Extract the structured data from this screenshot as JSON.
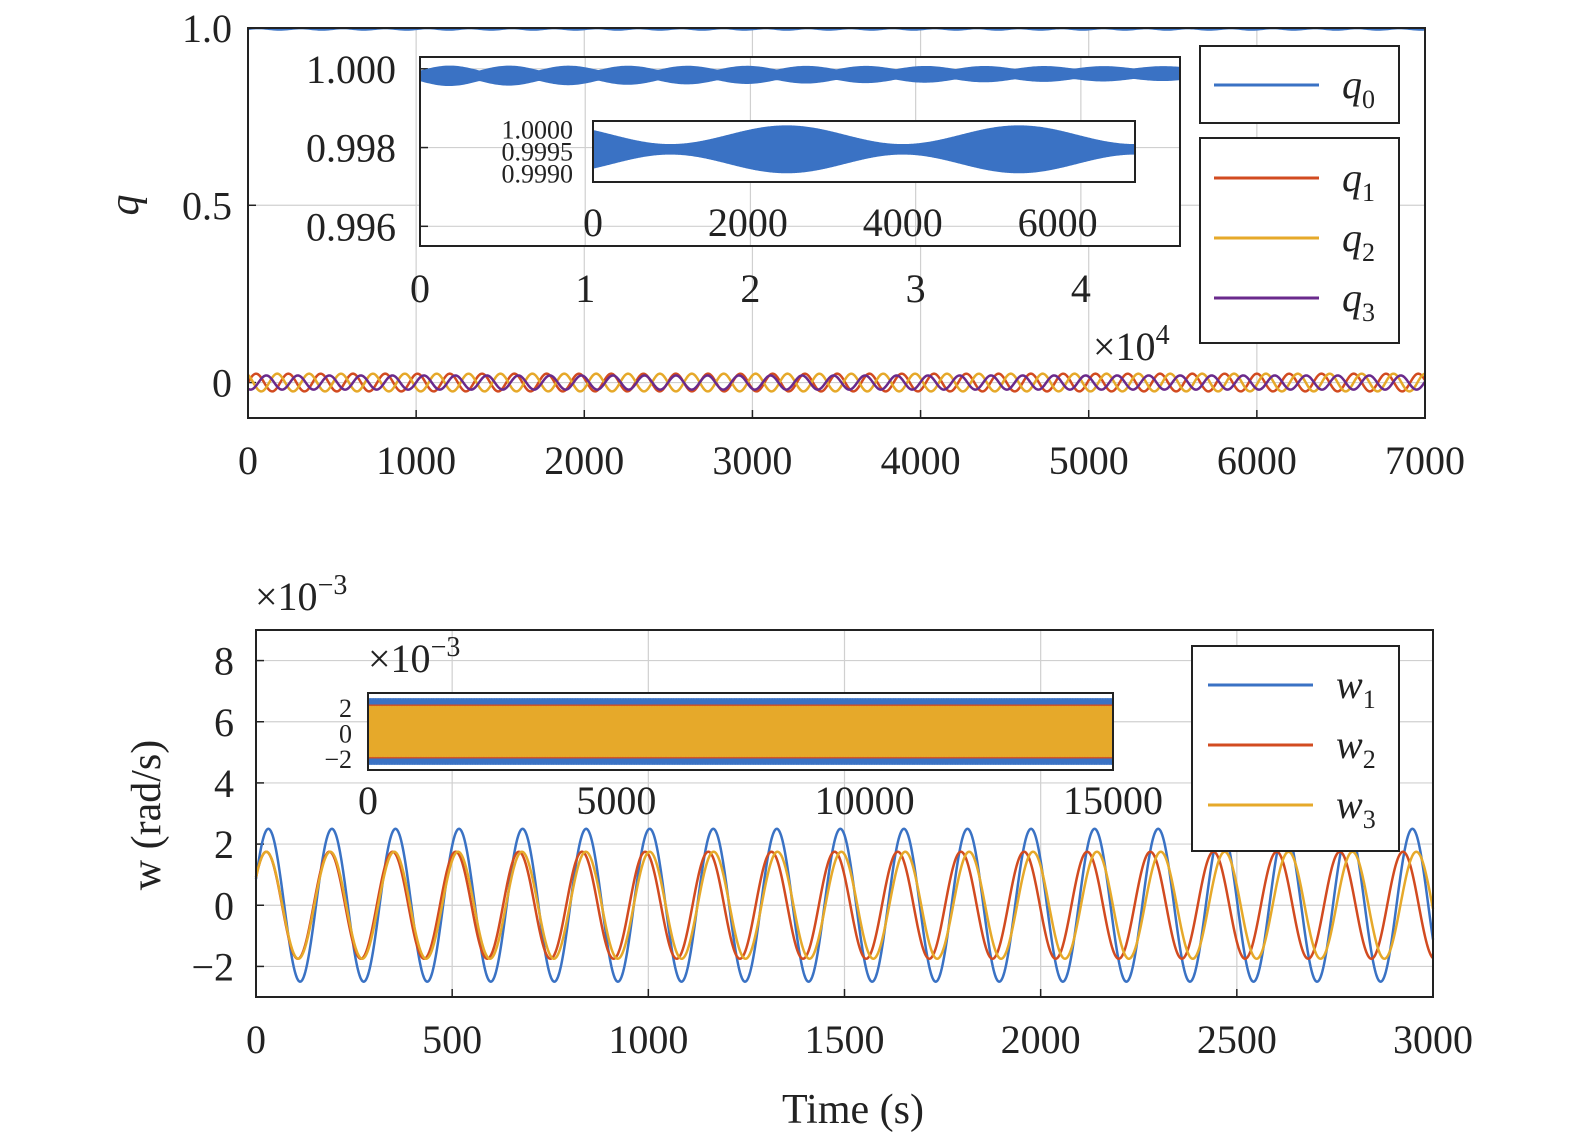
{
  "chart_data": [
    {
      "type": "line",
      "title": "",
      "xlabel": "",
      "ylabel": "q",
      "xlim": [
        0,
        7000
      ],
      "ylim": [
        -0.1,
        1.0
      ],
      "x_ticks": [
        "0",
        "1000",
        "2000",
        "3000",
        "4000",
        "5000",
        "6000",
        "7000"
      ],
      "y_ticks": [
        "0",
        "0.5",
        "1.0"
      ],
      "grid": true,
      "legend_position": "top-right",
      "series": [
        {
          "name": "q0",
          "color": "#3a72c4",
          "in_legend_group": 1
        },
        {
          "name": "q1",
          "color": "#d24b20",
          "amplitude": 0.025,
          "period": 192
        },
        {
          "name": "q2",
          "color": "#e6a92a",
          "amplitude": 0.025,
          "period": 192
        },
        {
          "name": "q3",
          "color": "#6a2a8c",
          "amplitude": 0.02,
          "period": 192
        }
      ],
      "legend": {
        "group1": [
          {
            "base": "q",
            "sub": "0",
            "color": "#3a72c4"
          }
        ],
        "group2": [
          {
            "base": "q",
            "sub": "1",
            "color": "#d24b20"
          },
          {
            "base": "q",
            "sub": "2",
            "color": "#e6a92a"
          },
          {
            "base": "q",
            "sub": "3",
            "color": "#6a2a8c"
          }
        ]
      },
      "inset": {
        "series": "q0",
        "xlim": [
          0,
          46000
        ],
        "x_ticks": [
          "0",
          "1",
          "2",
          "3",
          "4"
        ],
        "x_exponent_base": "×10",
        "x_exponent_power": "4",
        "ylim": [
          0.9955,
          1.0003
        ],
        "y_ticks": [
          "1.000",
          "0.998",
          "0.996"
        ],
        "center": 0.99985,
        "amplitude_range": [
          0.0001,
          0.00025
        ]
      },
      "inner_inset": {
        "series": "q0",
        "xlim": [
          0,
          7000
        ],
        "x_ticks": [
          "0",
          "2000",
          "4000",
          "6000"
        ],
        "ylim": [
          0.9988,
          1.0002
        ],
        "y_ticks": [
          "1.0000",
          "0.9995",
          "0.9990"
        ],
        "center": 0.99955,
        "amplitude_range": [
          0.00012,
          0.0005
        ]
      }
    },
    {
      "type": "line",
      "title": "",
      "xlabel": "Time (s)",
      "ylabel": "w (rad/s)",
      "xlim": [
        0,
        3000
      ],
      "ylim": [
        -3,
        9
      ],
      "y_scale_note_base": "×10",
      "y_scale_note_power": "−3",
      "x_ticks": [
        "0",
        "500",
        "1000",
        "1500",
        "2000",
        "2500",
        "3000"
      ],
      "y_ticks": [
        "−2",
        "0",
        "2",
        "4",
        "6",
        "8"
      ],
      "grid": true,
      "legend_position": "top-right",
      "series": [
        {
          "name": "w1",
          "color": "#3a72c4",
          "amplitude": 2.5,
          "period": 162
        },
        {
          "name": "w2",
          "color": "#d24b20",
          "amplitude": 1.75,
          "period": 162
        },
        {
          "name": "w3",
          "color": "#e6a92a",
          "amplitude": 1.75,
          "period": 162
        }
      ],
      "legend": [
        {
          "base": "w",
          "sub": "1",
          "color": "#3a72c4"
        },
        {
          "base": "w",
          "sub": "2",
          "color": "#d24b20"
        },
        {
          "base": "w",
          "sub": "3",
          "color": "#e6a92a"
        }
      ],
      "inset": {
        "xlim": [
          0,
          15000
        ],
        "x_ticks": [
          "0",
          "5000",
          "10000",
          "15000"
        ],
        "ylim": [
          -3,
          3
        ],
        "y_ticks": [
          "2",
          "0",
          "−2"
        ],
        "y_exponent_base": "×10",
        "y_exponent_power": "−3"
      }
    }
  ]
}
